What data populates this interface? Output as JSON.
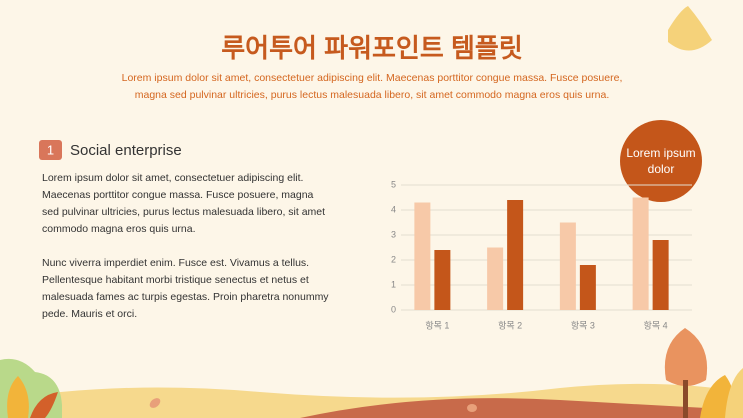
{
  "header": {
    "title": "루어투어 파워포인트 템플릿",
    "subtitle": [
      "Lorem ipsum dolor sit amet, consectetuer adipiscing elit. Maecenas porttitor congue massa. Fusce posuere,",
      "magna sed pulvinar ultricies, purus lectus malesuada libero, sit amet commodo magna eros quis urna."
    ]
  },
  "section": {
    "number": "1",
    "heading": "Social enterprise",
    "paragraphs": [
      [
        "Lorem ipsum dolor sit amet, consectetuer adipiscing elit.",
        "Maecenas porttitor congue massa. Fusce posuere, magna",
        "sed pulvinar ultricies, purus lectus malesuada libero, sit amet",
        "commodo magna eros quis urna."
      ],
      [
        "Nunc viverra imperdiet enim. Fusce est. Vivamus a tellus.",
        "Pellentesque habitant morbi tristique senectus et netus et",
        "malesuada fames ac turpis egestas. Proin pharetra nonummy",
        "pede. Mauris et orci."
      ]
    ]
  },
  "badge": [
    "Lorem ipsum",
    "dolor"
  ],
  "chart_data": {
    "type": "bar",
    "categories": [
      "항목 1",
      "항목 2",
      "항목 3",
      "항목 4"
    ],
    "series": [
      {
        "color": "#f7c9a8",
        "values": [
          4.3,
          2.5,
          3.5,
          4.5
        ]
      },
      {
        "color": "#c4561a",
        "values": [
          2.4,
          4.4,
          1.8,
          2.8
        ]
      }
    ],
    "ylim": [
      0,
      5
    ],
    "yticks": [
      0,
      1,
      2,
      3,
      4,
      5
    ],
    "grid": true
  }
}
